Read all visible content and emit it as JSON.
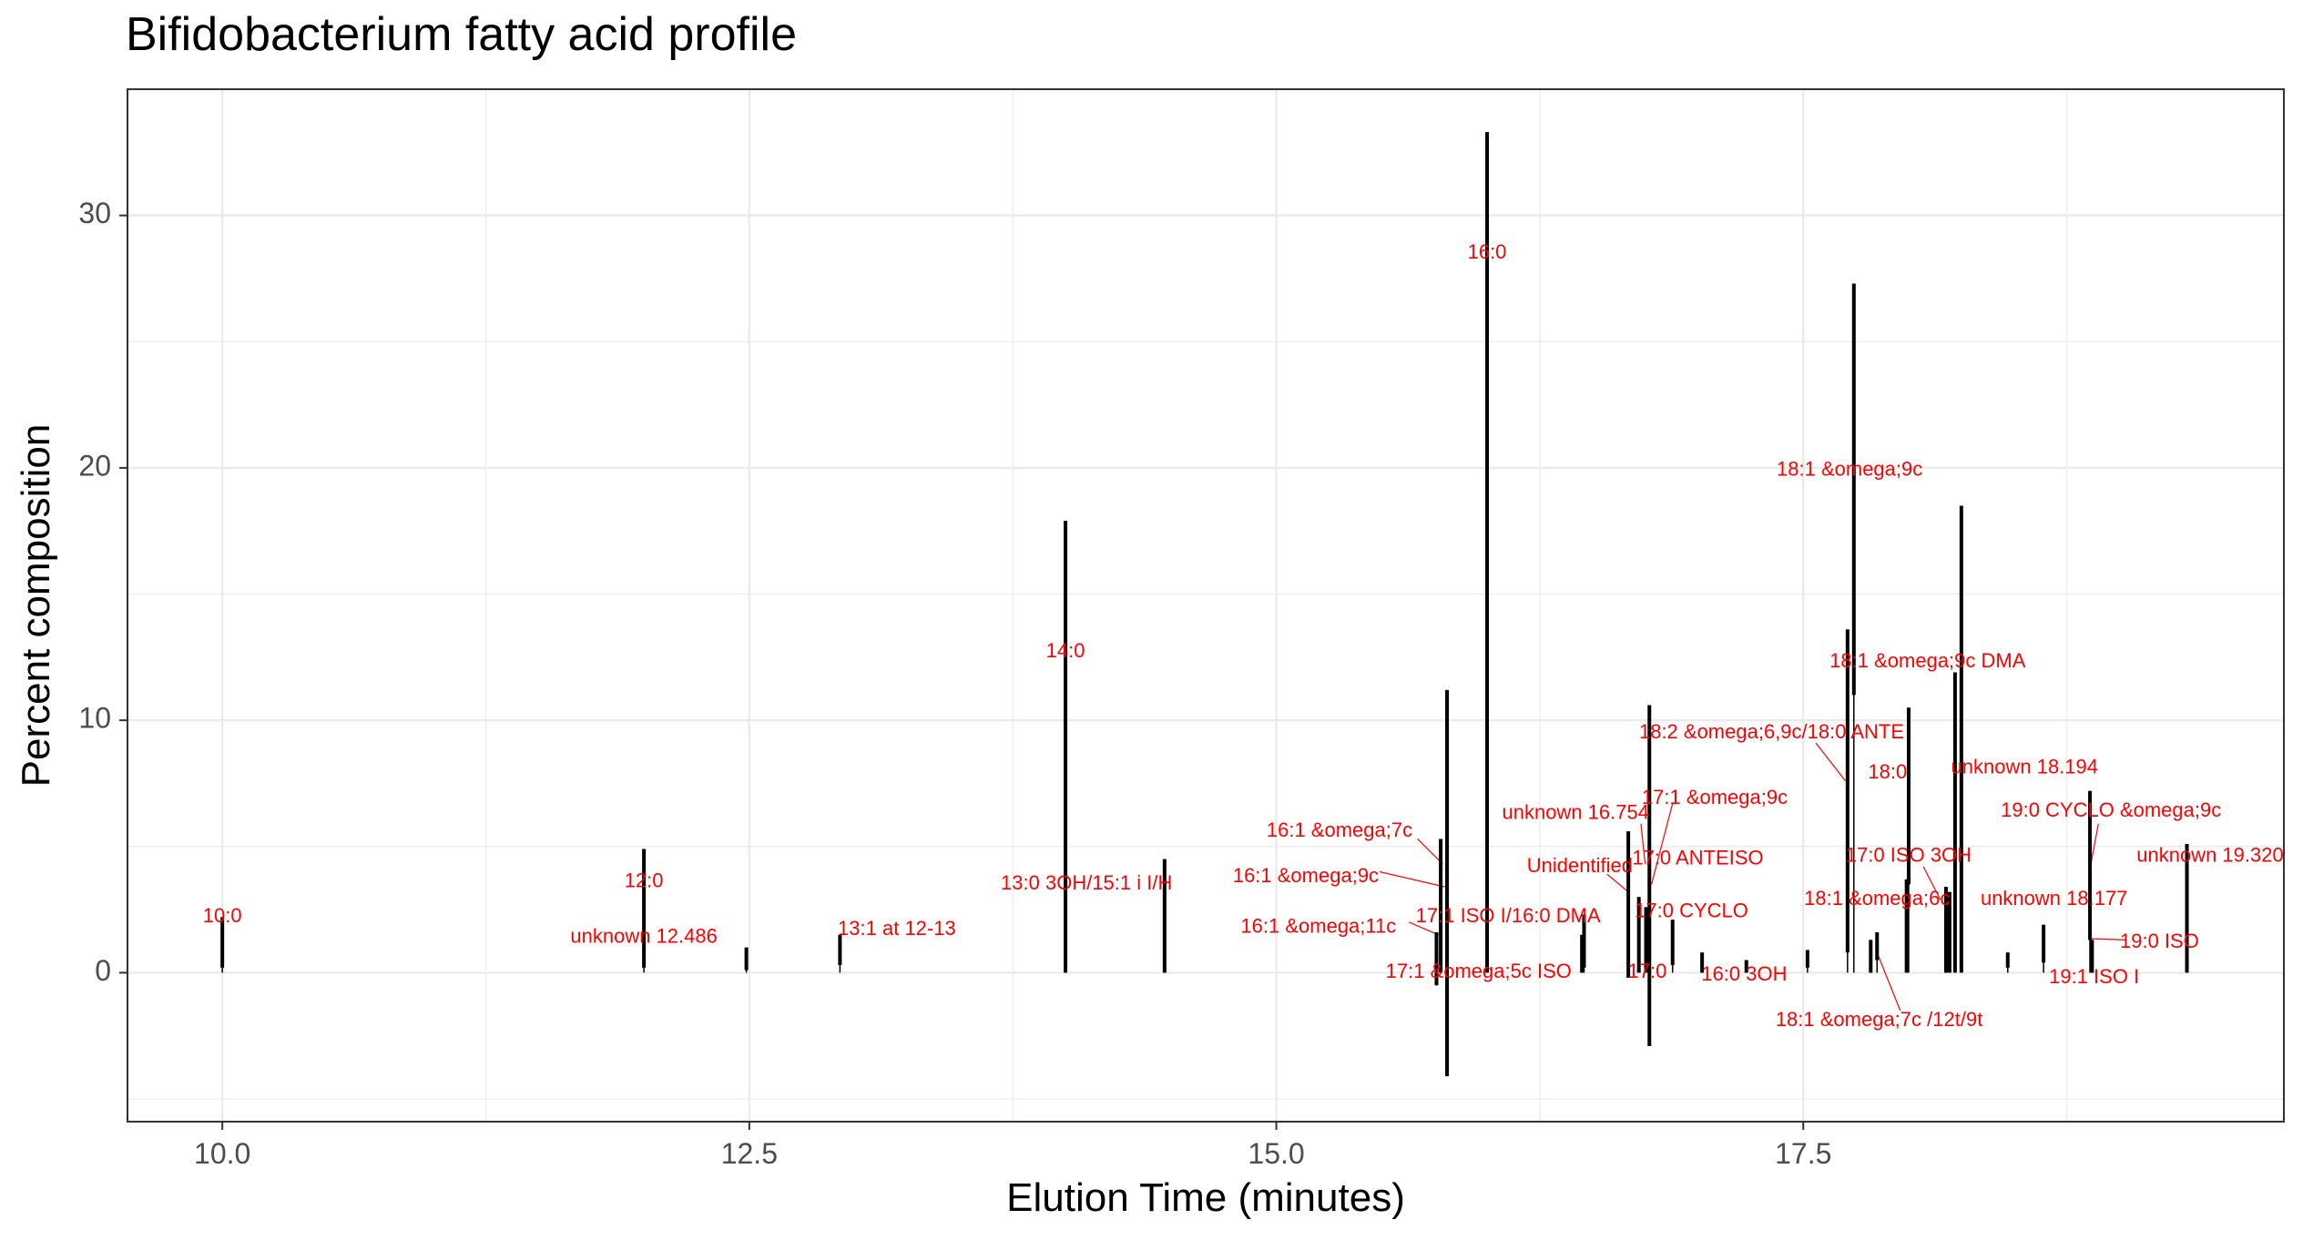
{
  "chart_data": {
    "type": "bar",
    "title": "Bifidobacterium fatty acid profile",
    "xlabel": "Elution Time (minutes)",
    "ylabel": "Percent composition",
    "xlim": [
      9.55,
      19.78
    ],
    "ylim": [
      -5.9,
      35.0
    ],
    "x_ticks": [
      10.0,
      12.5,
      15.0,
      17.5
    ],
    "x_tick_labels": [
      "10.0",
      "12.5",
      "15.0",
      "17.5"
    ],
    "y_ticks": [
      0,
      10,
      20,
      30
    ],
    "y_tick_labels": [
      "0",
      "10",
      "20",
      "30"
    ],
    "grid": true,
    "peaks": [
      {
        "x": 10.0,
        "lo": 0.2,
        "hi": 2.2,
        "label": "10:0",
        "lx": 10.0,
        "ly": 2.2
      },
      {
        "x": 12.0,
        "lo": 0.2,
        "hi": 4.9,
        "label": "12:0",
        "lx": 12.0,
        "ly": 3.6
      },
      {
        "x": 12.486,
        "lo": 0.1,
        "hi": 1.0,
        "label": "unknown 12.486",
        "lx": 12.0,
        "ly": 1.4
      },
      {
        "x": 12.93,
        "lo": 0.3,
        "hi": 1.5,
        "label": "13:1 at 12-13",
        "lx": 13.2,
        "ly": 1.7
      },
      {
        "x": 14.0,
        "lo": 0.0,
        "hi": 17.9,
        "label": "14:0",
        "lx": 14.0,
        "ly": 12.7
      },
      {
        "x": 14.47,
        "lo": 0.0,
        "hi": 4.5,
        "label": "13:0 3OH/15:1 i I/H",
        "lx": 14.1,
        "ly": 3.5
      },
      {
        "x": 15.76,
        "lo": -0.5,
        "hi": 1.6,
        "label": "16:1 &omega;11c",
        "lx": 15.2,
        "ly": 1.8
      },
      {
        "x": 15.78,
        "lo": 0.0,
        "hi": 5.3,
        "label": "16:1 &omega;7c",
        "lx": 15.3,
        "ly": 5.6
      },
      {
        "x": 15.81,
        "lo": -4.1,
        "hi": 11.2,
        "label": "16:1 &omega;9c",
        "lx": 15.14,
        "ly": 3.8
      },
      {
        "x": 16.0,
        "lo": 0.0,
        "hi": 33.3,
        "label": "16:0",
        "lx": 16.0,
        "ly": 28.5
      },
      {
        "x": 16.46,
        "lo": 0.2,
        "hi": 2.3,
        "label": "17:1 &omega;5c ISO",
        "lx": 15.96,
        "ly": 0.0
      },
      {
        "x": 16.45,
        "lo": 0.0,
        "hi": 1.5,
        "label": "17:1 ISO I/16:0 DMA",
        "lx": 16.1,
        "ly": 2.2
      },
      {
        "x": 16.67,
        "lo": -0.2,
        "hi": 5.6,
        "label": "Unidentified",
        "lx": 16.44,
        "ly": 4.2
      },
      {
        "x": 16.72,
        "lo": 0.0,
        "hi": 3.0,
        "label": "17:0",
        "lx": 16.76,
        "ly": 0.0
      },
      {
        "x": 16.754,
        "lo": 0.0,
        "hi": 2.6,
        "label": "unknown 16.754",
        "lx": 16.42,
        "ly": 6.3
      },
      {
        "x": 16.77,
        "lo": -2.9,
        "hi": 10.6,
        "label": "17:1 &omega;9c",
        "lx": 17.08,
        "ly": 6.9
      },
      {
        "x": 16.88,
        "lo": 0.3,
        "hi": 2.1,
        "label": "17:0 ANTEISO",
        "lx": 17.0,
        "ly": 4.5
      },
      {
        "x": 17.02,
        "lo": 0.0,
        "hi": 0.8,
        "label": "17:0 CYCLO",
        "lx": 16.97,
        "ly": 2.4
      },
      {
        "x": 17.23,
        "lo": 0.0,
        "hi": 0.5,
        "label": "16:0 3OH",
        "lx": 17.22,
        "ly": -0.1
      },
      {
        "x": 17.52,
        "lo": 0.2,
        "hi": 0.9,
        "label": "",
        "lx": 17.52,
        "ly": 0.9
      },
      {
        "x": 17.71,
        "lo": 0.8,
        "hi": 13.6,
        "label": "18:2 &omega;6,9c/18:0 ANTE",
        "lx": 17.35,
        "ly": 9.5
      },
      {
        "x": 17.74,
        "lo": 11.0,
        "hi": 27.3,
        "label": "18:1 &omega;9c",
        "lx": 17.72,
        "ly": 19.9
      },
      {
        "x": 17.82,
        "lo": 0.0,
        "hi": 1.3,
        "label": "18:1 &omega;7c /12t/9t",
        "lx": 17.86,
        "ly": -1.9
      },
      {
        "x": 17.85,
        "lo": 0.5,
        "hi": 1.6,
        "label": "18:1 &omega;9c DMA",
        "lx": 18.09,
        "ly": 12.3
      },
      {
        "x": 18.0,
        "lo": 3.5,
        "hi": 10.5,
        "label": "18:0",
        "lx": 17.9,
        "ly": 7.9
      },
      {
        "x": 17.99,
        "lo": 0.0,
        "hi": 3.7,
        "label": "17:0 ISO 3OH",
        "lx": 18.0,
        "ly": 4.6
      },
      {
        "x": 18.177,
        "lo": 0.0,
        "hi": 3.4,
        "label": "unknown 18.177",
        "lx": 18.69,
        "ly": 2.9
      },
      {
        "x": 18.194,
        "lo": 0.0,
        "hi": 3.2,
        "label": "unknown 18.194",
        "lx": 18.55,
        "ly": 8.1
      },
      {
        "x": 18.22,
        "lo": 0.0,
        "hi": 11.9,
        "label": "18:1 &omega;6c",
        "lx": 17.85,
        "ly": 2.9
      },
      {
        "x": 18.25,
        "lo": 0.0,
        "hi": 18.5,
        "label": "",
        "lx": 18.25,
        "ly": 18.5
      },
      {
        "x": 18.47,
        "lo": 0.2,
        "hi": 0.8,
        "label": "",
        "lx": 18.47,
        "ly": 0.8
      },
      {
        "x": 18.64,
        "lo": 0.4,
        "hi": 1.9,
        "label": "19:1 ISO I",
        "lx": 18.88,
        "ly": -0.2
      },
      {
        "x": 18.86,
        "lo": 1.3,
        "hi": 7.2,
        "label": "19:0 CYCLO &omega;9c",
        "lx": 18.96,
        "ly": 6.4
      },
      {
        "x": 18.87,
        "lo": 0.0,
        "hi": 1.3,
        "label": "19:0 ISO",
        "lx": 19.19,
        "ly": 1.2
      },
      {
        "x": 19.32,
        "lo": 0.0,
        "hi": 5.1,
        "label": "unknown 19.320",
        "lx": 19.43,
        "ly": 4.6
      }
    ],
    "leaders": [
      {
        "x1": 15.49,
        "y1": 4.0,
        "x2": 15.8,
        "y2": 3.4
      },
      {
        "x1": 15.63,
        "y1": 2.0,
        "x2": 15.77,
        "y2": 1.5
      },
      {
        "x1": 15.67,
        "y1": 5.3,
        "x2": 15.79,
        "y2": 4.3
      },
      {
        "x1": 16.57,
        "y1": 3.9,
        "x2": 16.67,
        "y2": 3.2
      },
      {
        "x1": 16.73,
        "y1": 5.9,
        "x2": 16.75,
        "y2": 4.3
      },
      {
        "x1": 16.88,
        "y1": 6.7,
        "x2": 16.78,
        "y2": 3.5
      },
      {
        "x1": 17.56,
        "y1": 9.1,
        "x2": 17.7,
        "y2": 7.6
      },
      {
        "x1": 18.07,
        "y1": 4.2,
        "x2": 18.15,
        "y2": 2.9
      },
      {
        "x1": 17.85,
        "y1": 0.8,
        "x2": 17.96,
        "y2": -1.5
      },
      {
        "x1": 18.9,
        "y1": 5.9,
        "x2": 18.86,
        "y2": 4.1
      },
      {
        "x1": 18.86,
        "y1": 1.35,
        "x2": 19.03,
        "y2": 1.3
      }
    ]
  }
}
